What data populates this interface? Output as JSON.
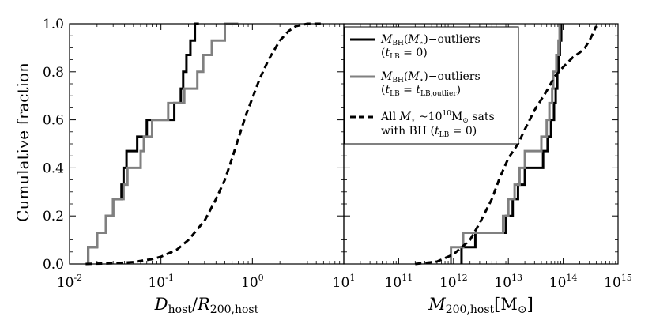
{
  "figure": {
    "ylabel": "Cumulative fraction",
    "y_ticks": [
      "0.0",
      "0.2",
      "0.4",
      "0.6",
      "0.8",
      "1.0"
    ]
  },
  "legend": {
    "entries": [
      {
        "line1": "M_BH(M_⋆)−outliers",
        "line2": "(t_LB = 0)",
        "color": "#000000",
        "dash": "solid"
      },
      {
        "line1": "M_BH(M_⋆)−outliers",
        "line2": "(t_LB = t_LB,outlier)",
        "color": "#808080",
        "dash": "solid"
      },
      {
        "line1": "All M_⋆ ~10^10 M_⊙ sats",
        "line2": "with BH (t_LB = 0)",
        "color": "#000000",
        "dash": "dashed"
      }
    ]
  },
  "chart_data": [
    {
      "type": "line",
      "xlabel": "D_host / R_200,host",
      "ylabel": "Cumulative fraction",
      "xscale": "log",
      "xlim": [
        0.01,
        10
      ],
      "ylim": [
        0,
        1
      ],
      "x_tick_labels": [
        "10^-2",
        "10^-1",
        "10^0",
        "10^1"
      ],
      "grid": false,
      "series": [
        {
          "name": "M_BH(M_⋆)−outliers (t_LB=0)",
          "step": true,
          "color": "#000000",
          "dash": "solid",
          "points": [
            [
              0.016,
              0.0
            ],
            [
              0.016,
              0.07
            ],
            [
              0.02,
              0.07
            ],
            [
              0.02,
              0.13
            ],
            [
              0.025,
              0.13
            ],
            [
              0.025,
              0.2
            ],
            [
              0.03,
              0.2
            ],
            [
              0.03,
              0.27
            ],
            [
              0.037,
              0.27
            ],
            [
              0.037,
              0.33
            ],
            [
              0.039,
              0.33
            ],
            [
              0.039,
              0.4
            ],
            [
              0.042,
              0.4
            ],
            [
              0.042,
              0.47
            ],
            [
              0.055,
              0.47
            ],
            [
              0.055,
              0.53
            ],
            [
              0.07,
              0.53
            ],
            [
              0.07,
              0.6
            ],
            [
              0.14,
              0.6
            ],
            [
              0.14,
              0.67
            ],
            [
              0.165,
              0.67
            ],
            [
              0.165,
              0.73
            ],
            [
              0.175,
              0.73
            ],
            [
              0.175,
              0.8
            ],
            [
              0.19,
              0.8
            ],
            [
              0.19,
              0.87
            ],
            [
              0.21,
              0.87
            ],
            [
              0.21,
              0.93
            ],
            [
              0.235,
              0.93
            ],
            [
              0.235,
              1.0
            ],
            [
              0.26,
              1.0
            ]
          ]
        },
        {
          "name": "M_BH(M_⋆)−outliers (t_LB=t_LB,outlier)",
          "step": true,
          "color": "#808080",
          "dash": "solid",
          "points": [
            [
              0.016,
              0.0
            ],
            [
              0.016,
              0.07
            ],
            [
              0.02,
              0.07
            ],
            [
              0.02,
              0.13
            ],
            [
              0.025,
              0.13
            ],
            [
              0.025,
              0.2
            ],
            [
              0.03,
              0.2
            ],
            [
              0.03,
              0.27
            ],
            [
              0.039,
              0.27
            ],
            [
              0.039,
              0.33
            ],
            [
              0.043,
              0.33
            ],
            [
              0.043,
              0.4
            ],
            [
              0.06,
              0.4
            ],
            [
              0.06,
              0.47
            ],
            [
              0.065,
              0.47
            ],
            [
              0.065,
              0.53
            ],
            [
              0.08,
              0.53
            ],
            [
              0.08,
              0.6
            ],
            [
              0.12,
              0.6
            ],
            [
              0.12,
              0.67
            ],
            [
              0.18,
              0.67
            ],
            [
              0.18,
              0.73
            ],
            [
              0.25,
              0.73
            ],
            [
              0.25,
              0.8
            ],
            [
              0.29,
              0.8
            ],
            [
              0.29,
              0.87
            ],
            [
              0.36,
              0.87
            ],
            [
              0.36,
              0.93
            ],
            [
              0.5,
              0.93
            ],
            [
              0.5,
              1.0
            ],
            [
              0.7,
              1.0
            ]
          ]
        },
        {
          "name": "All M_⋆~10^10 M_⊙ sats with BH (t_LB=0)",
          "step": false,
          "color": "#000000",
          "dash": "dashed",
          "points": [
            [
              0.015,
              0.0
            ],
            [
              0.03,
              0.003
            ],
            [
              0.05,
              0.008
            ],
            [
              0.08,
              0.02
            ],
            [
              0.1,
              0.03
            ],
            [
              0.15,
              0.06
            ],
            [
              0.2,
              0.1
            ],
            [
              0.3,
              0.18
            ],
            [
              0.4,
              0.27
            ],
            [
              0.5,
              0.35
            ],
            [
              0.6,
              0.44
            ],
            [
              0.7,
              0.52
            ],
            [
              0.85,
              0.62
            ],
            [
              1.0,
              0.69
            ],
            [
              1.2,
              0.77
            ],
            [
              1.5,
              0.85
            ],
            [
              2.0,
              0.93
            ],
            [
              2.5,
              0.97
            ],
            [
              3.0,
              0.99
            ],
            [
              4.0,
              1.0
            ],
            [
              6.0,
              1.0
            ]
          ]
        }
      ]
    },
    {
      "type": "line",
      "xlabel": "M_200,host [M_⊙]",
      "xscale": "log",
      "xlim": [
        10000000000.0,
        1000000000000000.0
      ],
      "ylim": [
        0,
        1
      ],
      "x_tick_labels": [
        "10^11",
        "10^12",
        "10^13",
        "10^14",
        "10^15"
      ],
      "grid": false,
      "series": [
        {
          "name": "M_BH(M_⋆)−outliers (t_LB=0)",
          "step": true,
          "color": "#000000",
          "dash": "solid",
          "points": [
            [
              1400000000000.0,
              0.0
            ],
            [
              1400000000000.0,
              0.07
            ],
            [
              2500000000000.0,
              0.07
            ],
            [
              2500000000000.0,
              0.13
            ],
            [
              9000000000000.0,
              0.13
            ],
            [
              9000000000000.0,
              0.2
            ],
            [
              12000000000000.0,
              0.2
            ],
            [
              12000000000000.0,
              0.27
            ],
            [
              15000000000000.0,
              0.27
            ],
            [
              15000000000000.0,
              0.33
            ],
            [
              20000000000000.0,
              0.33
            ],
            [
              20000000000000.0,
              0.4
            ],
            [
              43000000000000.0,
              0.4
            ],
            [
              43000000000000.0,
              0.47
            ],
            [
              52000000000000.0,
              0.47
            ],
            [
              52000000000000.0,
              0.53
            ],
            [
              60000000000000.0,
              0.53
            ],
            [
              60000000000000.0,
              0.6
            ],
            [
              68000000000000.0,
              0.6
            ],
            [
              68000000000000.0,
              0.67
            ],
            [
              73000000000000.0,
              0.67
            ],
            [
              73000000000000.0,
              0.73
            ],
            [
              78000000000000.0,
              0.73
            ],
            [
              78000000000000.0,
              0.8
            ],
            [
              83000000000000.0,
              0.8
            ],
            [
              83000000000000.0,
              0.87
            ],
            [
              87000000000000.0,
              0.87
            ],
            [
              87000000000000.0,
              0.93
            ],
            [
              92000000000000.0,
              0.93
            ],
            [
              92000000000000.0,
              1.0
            ]
          ]
        },
        {
          "name": "M_BH(M_⋆)−outliers (t_LB=t_LB,outlier)",
          "step": true,
          "color": "#808080",
          "dash": "solid",
          "points": [
            [
              900000000000.0,
              0.0
            ],
            [
              900000000000.0,
              0.07
            ],
            [
              1500000000000.0,
              0.07
            ],
            [
              1500000000000.0,
              0.13
            ],
            [
              8000000000000.0,
              0.13
            ],
            [
              8000000000000.0,
              0.2
            ],
            [
              10000000000000.0,
              0.2
            ],
            [
              10000000000000.0,
              0.27
            ],
            [
              13000000000000.0,
              0.27
            ],
            [
              13000000000000.0,
              0.33
            ],
            [
              16000000000000.0,
              0.33
            ],
            [
              16000000000000.0,
              0.4
            ],
            [
              20000000000000.0,
              0.4
            ],
            [
              20000000000000.0,
              0.47
            ],
            [
              40000000000000.0,
              0.47
            ],
            [
              40000000000000.0,
              0.53
            ],
            [
              50000000000000.0,
              0.53
            ],
            [
              50000000000000.0,
              0.6
            ],
            [
              56000000000000.0,
              0.6
            ],
            [
              56000000000000.0,
              0.67
            ],
            [
              63000000000000.0,
              0.67
            ],
            [
              63000000000000.0,
              0.73
            ],
            [
              66000000000000.0,
              0.73
            ],
            [
              66000000000000.0,
              0.8
            ],
            [
              75000000000000.0,
              0.8
            ],
            [
              75000000000000.0,
              0.87
            ],
            [
              82000000000000.0,
              0.87
            ],
            [
              82000000000000.0,
              0.93
            ],
            [
              86000000000000.0,
              0.93
            ],
            [
              86000000000000.0,
              1.0
            ]
          ]
        },
        {
          "name": "All M_⋆~10^10 M_⊙ sats with BH (t_LB=0)",
          "step": false,
          "color": "#000000",
          "dash": "dashed",
          "points": [
            [
              200000000000.0,
              0.0
            ],
            [
              500000000000.0,
              0.01
            ],
            [
              1000000000000.0,
              0.04
            ],
            [
              2000000000000.0,
              0.1
            ],
            [
              3000000000000.0,
              0.17
            ],
            [
              5000000000000.0,
              0.27
            ],
            [
              7000000000000.0,
              0.36
            ],
            [
              10000000000000.0,
              0.44
            ],
            [
              15000000000000.0,
              0.5
            ],
            [
              20000000000000.0,
              0.56
            ],
            [
              30000000000000.0,
              0.64
            ],
            [
              50000000000000.0,
              0.72
            ],
            [
              70000000000000.0,
              0.78
            ],
            [
              100000000000000.0,
              0.82
            ],
            [
              150000000000000.0,
              0.86
            ],
            [
              200000000000000.0,
              0.88
            ],
            [
              250000000000000.0,
              0.9
            ],
            [
              300000000000000.0,
              0.93
            ],
            [
              350000000000000.0,
              0.96
            ],
            [
              400000000000000.0,
              0.99
            ]
          ]
        }
      ]
    }
  ]
}
